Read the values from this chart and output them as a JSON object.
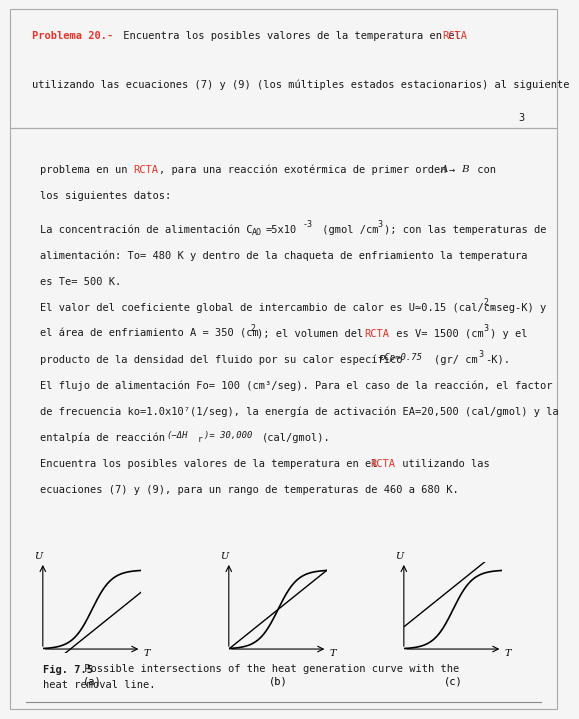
{
  "page1_title_red": "Problema 20.-",
  "page1_title_black": " Encuentra los posibles valores de la temperatura en el ",
  "page1_title_rcta": "RCTA",
  "page1_line2": "utilizando las ecuaciones (7) y (9) (los múltiples estados estacionarios) al siguiente",
  "page1_number": "3",
  "page2_line1_black1": "problema en un ",
  "page2_line1_rcta": "RCTA",
  "page2_line1_black2": ", para una reacción exotérmica de primer orden ",
  "page2_line1_reaction": "A → B",
  "page2_line1_black3": " con",
  "page2_line2": "los siguientes datos:",
  "page2_para1_line1_b1": "La concentración de alimentación C",
  "page2_para1_line1_b1sub": "AO",
  "page2_para1_line1_b2": "=5x10",
  "page2_para1_line1_b2sup": "-3",
  "page2_para1_line1_b3": " (gmol /cm",
  "page2_para1_line1_b3sup": "3",
  "page2_para1_line1_b4": "); con las temperaturas de",
  "page2_para1_line2": "alimentación: To= 480 K y dentro de la chaqueta de enfriamiento la temperatura",
  "page2_para1_line3": "es Te= 500 K.",
  "page2_para2_line1_b1": "El valor del coeficiente global de intercambio de calor es U≃0.15 (cal/cm",
  "page2_para2_line1_b1sup": "2",
  "page2_para2_line1_b2": "-seg-K) y",
  "page2_para2_line2_b1": "el área de enfriamiento A = 350 (cm",
  "page2_para2_line2_b1sup": "2",
  "page2_para2_line2_b2": "); el volumen del ",
  "page2_para2_line2_rcta": "RCTA",
  "page2_para2_line2_b3": " es V= 1500 (cm",
  "page2_para2_line2_b3sup": "3",
  "page2_para2_line2_b4": ") y el",
  "page2_para3_line1_b1": "producto de la densidad del fluido por su calor específico ",
  "page2_para3_line1_rho": "ρCp≈0.75",
  "page2_para3_line1_b2": "(gr/ cm",
  "page2_para3_line1_b2sup": "3",
  "page2_para3_line1_b3": "-K).",
  "page2_para4_line1": "El flujo de alimentación Fo= 100 (cm³/seg). Para el caso de la reacción, el factor",
  "page2_para4_line2": "de frecuencia ko=1.0x10⁷(1/seg), la energía de activación EA=20,500 (cal/gmol) y la",
  "page2_para4_line3_b1": "entalpía de reacción ",
  "page2_para4_line3_b2": "(−ΔH",
  "page2_para4_line3_b2sub": "r",
  "page2_para4_line3_b3": ")= 30,000",
  "page2_para4_line3_b4": "(cal/gmol).",
  "page2_para5_line1_b1": "Encuentra los posibles valores de la temperatura en el ",
  "page2_para5_line1_rcta": "RCTA",
  "page2_para5_line1_b2": " utilizando las",
  "page2_para5_line2": "ecuaciones (7) y (9), para un rango de temperaturas de 460 a 680 K.",
  "fig_label": "Fig. 7.5",
  "fig_caption": " Possible intersections of the heat generation curve with the",
  "fig_caption2": "heat removal line.",
  "subplot_labels": [
    "(a)",
    "(b)",
    "(c)"
  ],
  "background_color": "#f5f5f5",
  "text_color": "#1a1a1a",
  "red_color": "#e8342a",
  "panel1_bg": "#ffffff",
  "panel2_bg": "#ffffff"
}
